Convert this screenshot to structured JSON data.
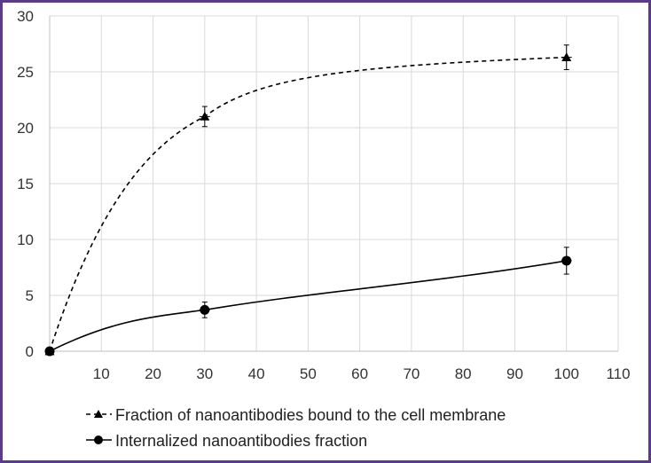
{
  "chart_data": {
    "type": "line",
    "title": "",
    "xlabel": "",
    "ylabel": "",
    "xlim": [
      0,
      110
    ],
    "ylim": [
      0,
      30
    ],
    "x_ticks": [
      10,
      20,
      30,
      40,
      50,
      60,
      70,
      80,
      90,
      100,
      110
    ],
    "y_ticks": [
      0,
      5,
      10,
      15,
      20,
      25,
      30
    ],
    "grid": true,
    "legend_position": "bottom",
    "series": [
      {
        "name": "Fraction of nanoantibodies bound to the cell membrane",
        "marker": "triangle",
        "line_style": "dashed",
        "x": [
          0,
          30,
          100
        ],
        "y": [
          0,
          21,
          26.3
        ],
        "error": [
          0,
          0.9,
          1.1
        ]
      },
      {
        "name": "Internalized nanoantibodies fraction",
        "marker": "circle",
        "line_style": "solid",
        "x": [
          0,
          30,
          100
        ],
        "y": [
          0,
          3.7,
          8.1
        ],
        "error": [
          0,
          0.7,
          1.2
        ]
      }
    ]
  },
  "colors": {
    "frame": "#5b3a8c",
    "grid": "#d9d9d9",
    "series": "#000000"
  }
}
